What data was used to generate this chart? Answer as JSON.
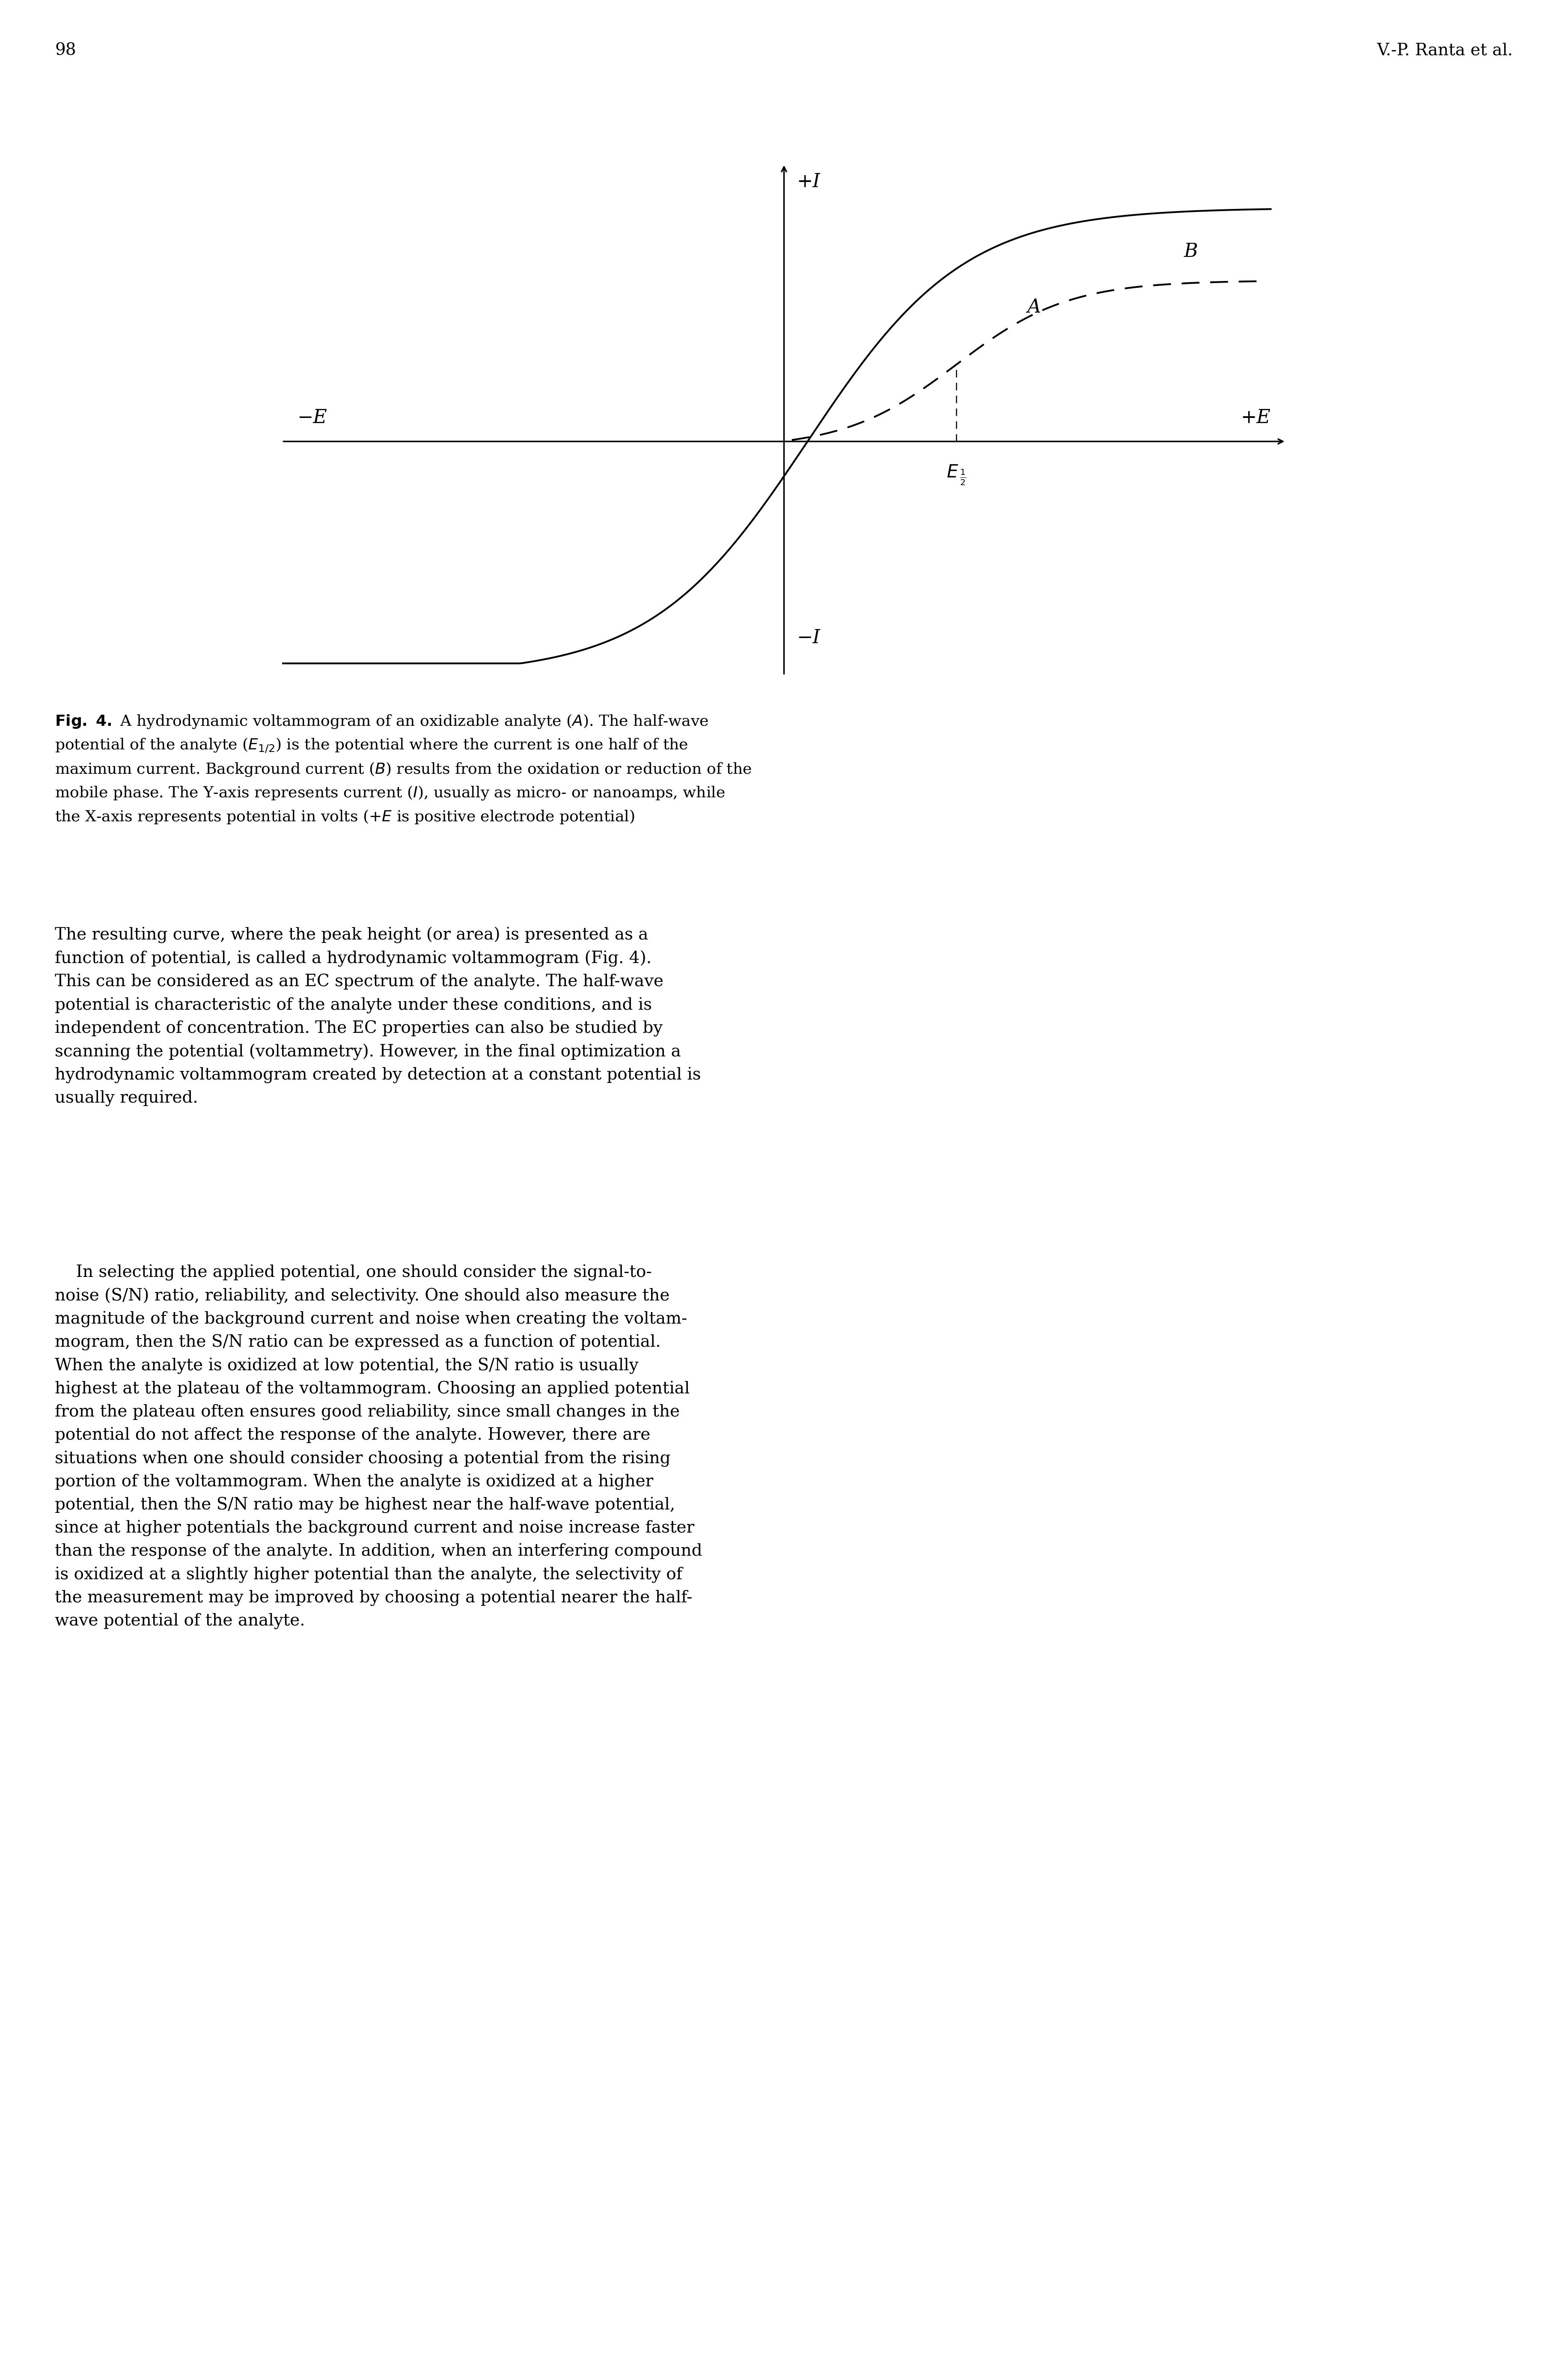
{
  "page_number": "98",
  "header_right": "V.-P. Ranta et al.",
  "background_color": "#ffffff",
  "chart_xlim": [
    -3.2,
    3.2
  ],
  "chart_ylim": [
    -1.6,
    1.9
  ],
  "axis_label_fontsize": 32,
  "curve_lw": 3.0,
  "caption_fontsize": 26,
  "body_fontsize": 28,
  "header_fontsize": 28
}
